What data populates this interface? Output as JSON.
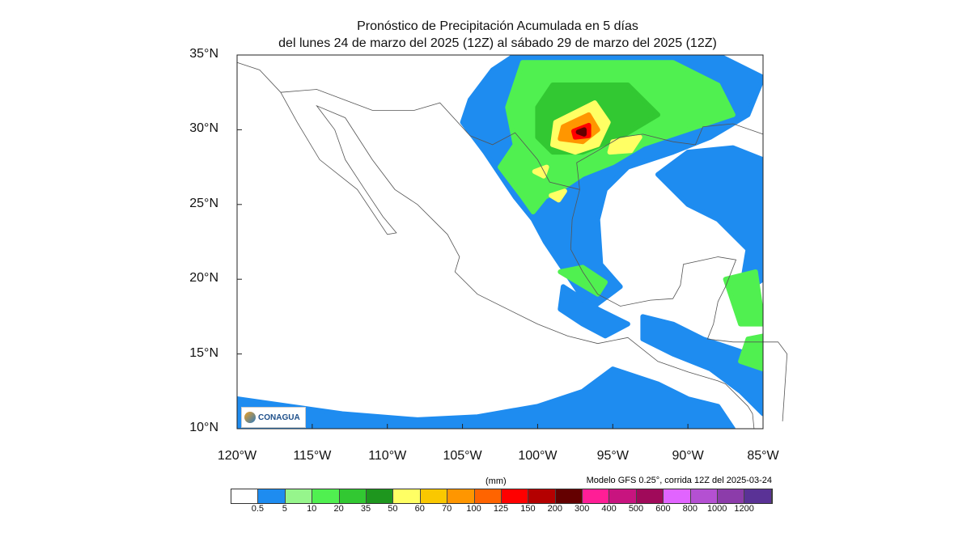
{
  "title": {
    "line1": "Pronóstico de Precipitación Acumulada en 5 días",
    "line2": "del lunes 24 de marzo del 2025 (12Z) al sábado  29 de marzo del 2025 (12Z)"
  },
  "axes": {
    "lat_labels": [
      "35°N",
      "30°N",
      "25°N",
      "20°N",
      "15°N",
      "10°N"
    ],
    "lon_labels": [
      "120°W",
      "115°W",
      "110°W",
      "105°W",
      "100°W",
      "95°W",
      "90°W",
      "85°W"
    ],
    "lon_range": [
      -120,
      -85
    ],
    "lat_range": [
      10,
      35
    ]
  },
  "legend": {
    "units": "(mm)",
    "model": "Modelo GFS 0.25°, corrida 12Z del 2025-03-24",
    "levels": [
      "0.5",
      "5",
      "10",
      "20",
      "35",
      "50",
      "60",
      "70",
      "100",
      "125",
      "150",
      "200",
      "300",
      "400",
      "500",
      "600",
      "800",
      "1000",
      "1200"
    ],
    "colors": [
      "#ffffff",
      "#1e8cf0",
      "#96f58c",
      "#50f050",
      "#32c832",
      "#1e961e",
      "#ffff64",
      "#fac800",
      "#ff9600",
      "#ff6400",
      "#ff0000",
      "#b40000",
      "#640000",
      "#ff1e96",
      "#c8147f",
      "#a00a5a",
      "#e164ff",
      "#b450d2",
      "#8c3caa",
      "#5a3296"
    ]
  },
  "logo": {
    "text": "CONAGUA"
  }
}
